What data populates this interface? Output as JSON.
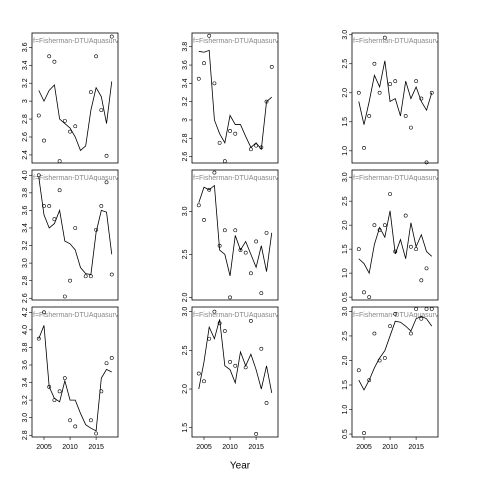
{
  "x_label": "Year",
  "chart_data": [
    {
      "type": "scatter",
      "title": "f=Fisherman-DTUAquasurv",
      "x": [
        2004,
        2005,
        2006,
        2007,
        2008,
        2009,
        2010,
        2011,
        2012,
        2013,
        2014,
        2015,
        2016,
        2017,
        2018
      ],
      "values": [
        2.84,
        2.56,
        3.5,
        3.44,
        2.33,
        2.78,
        2.66,
        2.72,
        null,
        null,
        3.1,
        3.5,
        2.9,
        2.39,
        3.72
      ],
      "fit": [
        3.12,
        3.0,
        3.12,
        3.18,
        2.8,
        2.75,
        2.7,
        2.6,
        2.45,
        2.5,
        2.9,
        3.15,
        3.05,
        2.75,
        3.22
      ],
      "xlim": [
        2002.7,
        2019.2
      ],
      "ylim": [
        2.31,
        3.76
      ],
      "yticks": [
        2.4,
        2.6,
        2.8,
        3.0,
        3.2,
        3.4,
        3.6
      ]
    },
    {
      "type": "scatter",
      "title": "f=Fisherman-DTUAquasurv",
      "x": [
        2004,
        2005,
        2006,
        2007,
        2008,
        2009,
        2010,
        2011,
        2012,
        2013,
        2014,
        2015,
        2016,
        2017,
        2018
      ],
      "values": [
        3.45,
        3.62,
        3.92,
        3.4,
        2.75,
        2.55,
        2.88,
        2.85,
        null,
        null,
        2.68,
        2.72,
        2.7,
        3.2,
        3.58
      ],
      "fit": [
        3.75,
        3.74,
        3.76,
        3.0,
        2.85,
        2.75,
        3.05,
        2.95,
        2.95,
        2.82,
        2.7,
        2.75,
        2.68,
        3.2,
        3.25
      ],
      "xlim": [
        2002.7,
        2019.2
      ],
      "ylim": [
        2.53,
        3.95
      ],
      "yticks": [
        2.6,
        2.8,
        3.0,
        3.2,
        3.4,
        3.6,
        3.8
      ]
    },
    {
      "type": "scatter",
      "title": "f=Fisherman-DTUAquasurv",
      "x": [
        2004,
        2005,
        2006,
        2007,
        2008,
        2009,
        2010,
        2011,
        2012,
        2013,
        2014,
        2015,
        2016,
        2017,
        2018
      ],
      "values": [
        2.0,
        1.05,
        1.6,
        2.5,
        2.0,
        2.95,
        2.15,
        2.2,
        null,
        1.6,
        1.4,
        2.2,
        1.9,
        0.8,
        2.0
      ],
      "fit": [
        1.85,
        1.45,
        1.85,
        2.3,
        2.1,
        2.55,
        1.85,
        1.9,
        1.6,
        2.2,
        1.9,
        2.1,
        1.85,
        1.7,
        2.0
      ],
      "xlim": [
        2002.7,
        2019.2
      ],
      "ylim": [
        0.79,
        3.03
      ],
      "yticks": [
        {
          "value": 1,
          "label": "1.0"
        },
        1.5,
        {
          "value": 2,
          "label": "2.0"
        },
        2.5,
        {
          "value": 3,
          "label": "3.0"
        }
      ]
    },
    {
      "type": "scatter",
      "title": "f=Fisherman-DTUAquasurv",
      "x": [
        2004,
        2005,
        2006,
        2007,
        2008,
        2009,
        2010,
        2011,
        2012,
        2013,
        2014,
        2015,
        2016,
        2017,
        2018
      ],
      "values": [
        4.0,
        3.65,
        3.65,
        3.5,
        3.83,
        2.62,
        2.8,
        3.4,
        null,
        2.85,
        2.85,
        3.38,
        3.65,
        3.92,
        2.87
      ],
      "fit": [
        3.98,
        3.55,
        3.4,
        3.45,
        3.6,
        3.25,
        3.22,
        3.15,
        2.95,
        2.88,
        2.87,
        3.35,
        3.6,
        3.58,
        3.1
      ],
      "xlim": [
        2002.7,
        2019.2
      ],
      "ylim": [
        2.58,
        4.06
      ],
      "yticks": [
        2.6,
        2.8,
        {
          "value": 3,
          "label": "3.0"
        },
        3.2,
        3.4,
        3.6,
        3.8,
        {
          "value": 4,
          "label": "4.0"
        }
      ]
    },
    {
      "type": "scatter",
      "title": "f=Fisherman-DTUAquasurv",
      "x": [
        2004,
        2005,
        2006,
        2007,
        2008,
        2009,
        2010,
        2011,
        2012,
        2013,
        2014,
        2015,
        2016,
        2017,
        2018
      ],
      "values": [
        3.07,
        2.9,
        3.25,
        3.45,
        2.6,
        2.78,
        2.0,
        2.78,
        2.55,
        2.52,
        2.28,
        2.65,
        2.05,
        2.75,
        null
      ],
      "fit": [
        3.1,
        3.28,
        3.25,
        3.3,
        2.55,
        2.5,
        2.25,
        2.72,
        2.55,
        2.65,
        2.5,
        2.35,
        2.6,
        2.3,
        2.75
      ],
      "xlim": [
        2002.7,
        2019.2
      ],
      "ylim": [
        1.97,
        3.48
      ],
      "yticks": [
        {
          "value": 2,
          "label": "2.0"
        },
        2.5,
        {
          "value": 3,
          "label": "3.0"
        }
      ]
    },
    {
      "type": "scatter",
      "title": "f=Fisherman-DTUAquasurv",
      "x": [
        2004,
        2005,
        2006,
        2007,
        2008,
        2009,
        2010,
        2011,
        2012,
        2013,
        2014,
        2015,
        2016,
        2017,
        2018
      ],
      "values": [
        1.5,
        0.6,
        0.5,
        2.0,
        1.9,
        2.0,
        2.65,
        1.45,
        null,
        2.2,
        1.55,
        1.5,
        0.85,
        1.1,
        null
      ],
      "fit": [
        1.3,
        1.2,
        1.0,
        1.6,
        1.95,
        1.75,
        2.3,
        1.4,
        1.7,
        1.3,
        2.05,
        1.55,
        1.8,
        1.45,
        1.35
      ],
      "xlim": [
        2002.7,
        2019.2
      ],
      "ylim": [
        0.44,
        3.15
      ],
      "yticks": [
        0.5,
        {
          "value": 1,
          "label": "1.0"
        },
        1.5,
        {
          "value": 2,
          "label": "2.0"
        },
        2.5,
        {
          "value": 3,
          "label": "3.0"
        }
      ]
    },
    {
      "type": "scatter",
      "title": "f=Fisherman-DTUAquasurv",
      "x": [
        2004,
        2005,
        2006,
        2007,
        2008,
        2009,
        2010,
        2011,
        2012,
        2013,
        2014,
        2015,
        2016,
        2017,
        2018
      ],
      "values": [
        3.9,
        4.2,
        3.35,
        3.2,
        3.3,
        3.45,
        2.97,
        2.9,
        null,
        null,
        2.97,
        2.82,
        3.3,
        3.62,
        3.68
      ],
      "fit": [
        3.9,
        4.05,
        3.35,
        3.22,
        3.18,
        3.42,
        3.2,
        3.2,
        3.05,
        2.92,
        2.88,
        2.85,
        3.45,
        3.55,
        3.52
      ],
      "xlim": [
        2002.7,
        2019.2
      ],
      "ylim": [
        2.78,
        4.26
      ],
      "yticks": [
        2.8,
        {
          "value": 3,
          "label": "3.0"
        },
        3.2,
        3.4,
        3.6,
        3.8,
        {
          "value": 4,
          "label": "4.0"
        },
        4.2
      ],
      "xticks": [
        2005,
        2010,
        2015
      ]
    },
    {
      "type": "scatter",
      "title": "f=Fisherman-DTUAquasurv",
      "x": [
        2004,
        2005,
        2006,
        2007,
        2008,
        2009,
        2010,
        2011,
        2012,
        2013,
        2014,
        2015,
        2016,
        2017,
        2018
      ],
      "values": [
        2.2,
        2.1,
        2.65,
        3.0,
        2.85,
        2.75,
        2.35,
        2.3,
        null,
        2.28,
        2.88,
        1.42,
        2.52,
        1.82,
        null
      ],
      "fit": [
        2.0,
        2.35,
        2.8,
        2.65,
        2.9,
        2.3,
        2.25,
        2.08,
        2.48,
        2.3,
        2.45,
        2.25,
        2.0,
        2.3,
        1.95
      ],
      "xlim": [
        2002.7,
        2019.2
      ],
      "ylim": [
        1.38,
        3.06
      ],
      "yticks": [
        1.5,
        {
          "value": 2,
          "label": "2.0"
        },
        2.5,
        {
          "value": 3,
          "label": "3.0"
        }
      ],
      "xticks": [
        2005,
        2010,
        2015
      ]
    },
    {
      "type": "scatter",
      "title": "f=Fisherman-DTUAquasurv",
      "x": [
        2004,
        2005,
        2006,
        2007,
        2008,
        2009,
        2010,
        2011,
        2012,
        2013,
        2014,
        2015,
        2016,
        2017,
        2018
      ],
      "values": [
        1.8,
        0.52,
        1.6,
        2.55,
        2.0,
        2.05,
        2.7,
        2.95,
        null,
        null,
        2.55,
        3.05,
        2.85,
        3.05,
        3.05
      ],
      "fit": [
        1.6,
        1.4,
        1.6,
        1.85,
        2.05,
        2.2,
        2.5,
        2.8,
        2.78,
        2.7,
        2.6,
        2.85,
        2.9,
        2.85,
        2.7
      ],
      "xlim": [
        2002.7,
        2019.2
      ],
      "ylim": [
        0.44,
        3.09
      ],
      "yticks": [
        0.5,
        {
          "value": 1,
          "label": "1.0"
        },
        1.5,
        {
          "value": 2,
          "label": "2.0"
        },
        2.5,
        {
          "value": 3,
          "label": "3.0"
        }
      ],
      "xticks": [
        2005,
        2010,
        2015
      ]
    }
  ]
}
